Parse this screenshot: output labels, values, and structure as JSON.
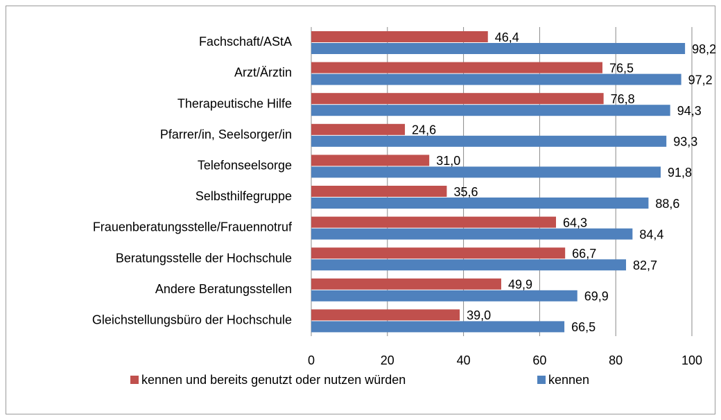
{
  "chart_data": {
    "type": "hbar",
    "categories": [
      "Fachschaft/AStA",
      "Arzt/Ärztin",
      "Therapeutische Hilfe",
      "Pfarrer/in, Seelsorger/in",
      "Telefonseelsorge",
      "Selbsthilfegruppe",
      "Frauenberatungsstelle/Frauennotruf",
      "Beratungsstelle der Hochschule",
      "Andere Beratungsstellen",
      "Gleichstellungsbüro der Hochschule"
    ],
    "series": [
      {
        "name": "kennen und bereits genutzt oder nutzen würden",
        "color": "#c0504d",
        "values": [
          46.4,
          76.5,
          76.8,
          24.6,
          31.0,
          35.6,
          64.3,
          66.7,
          49.9,
          39.0
        ],
        "value_labels": [
          "46,4",
          "76,5",
          "76,8",
          "24,6",
          "31,0",
          "35,6",
          "64,3",
          "66,7",
          "49,9",
          "39,0"
        ]
      },
      {
        "name": "kennen",
        "color": "#4f81bd",
        "values": [
          98.2,
          97.2,
          94.3,
          93.3,
          91.8,
          88.6,
          84.4,
          82.7,
          69.9,
          66.5
        ],
        "value_labels": [
          "98,2",
          "97,2",
          "94,3",
          "93,3",
          "91,8",
          "88,6",
          "84,4",
          "82,7",
          "69,9",
          "66,5"
        ]
      }
    ],
    "xlim": [
      0,
      100
    ],
    "xticks": [
      0,
      20,
      40,
      60,
      80,
      100
    ],
    "grid": true,
    "legend": "bottom"
  }
}
